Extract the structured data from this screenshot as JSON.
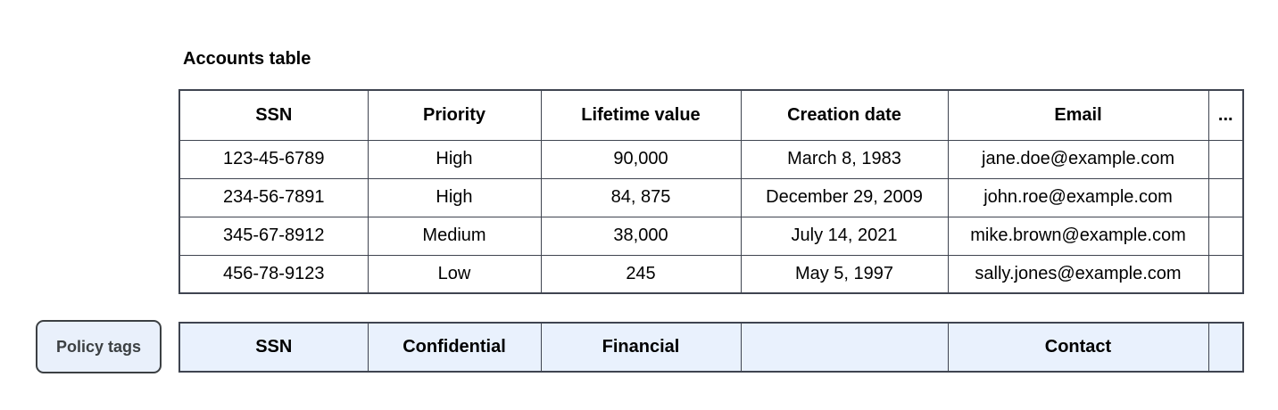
{
  "title": "Accounts table",
  "table": {
    "headers": [
      "SSN",
      "Priority",
      "Lifetime value",
      "Creation date",
      "Email",
      "..."
    ],
    "rows": [
      [
        "123-45-6789",
        "High",
        "90,000",
        "March 8, 1983",
        "jane.doe@example.com",
        ""
      ],
      [
        "234-56-7891",
        "High",
        "84, 875",
        "December 29, 2009",
        "john.roe@example.com",
        ""
      ],
      [
        "345-67-8912",
        "Medium",
        "38,000",
        "July 14, 2021",
        "mike.brown@example.com",
        ""
      ],
      [
        "456-78-9123",
        "Low",
        "245",
        "May 5, 1997",
        "sally.jones@example.com",
        ""
      ]
    ]
  },
  "policy": {
    "label": "Policy tags",
    "tags": [
      "SSN",
      "Confidential",
      "Financial",
      "",
      "Contact",
      ""
    ]
  },
  "colors": {
    "table_border": "#3f4450",
    "policy_row_bg": "#e9f1fd",
    "policy_button_bg": "#e9f0fb",
    "policy_button_border": "#3c4043",
    "policy_button_text": "#3c4043",
    "text": "#000000"
  }
}
